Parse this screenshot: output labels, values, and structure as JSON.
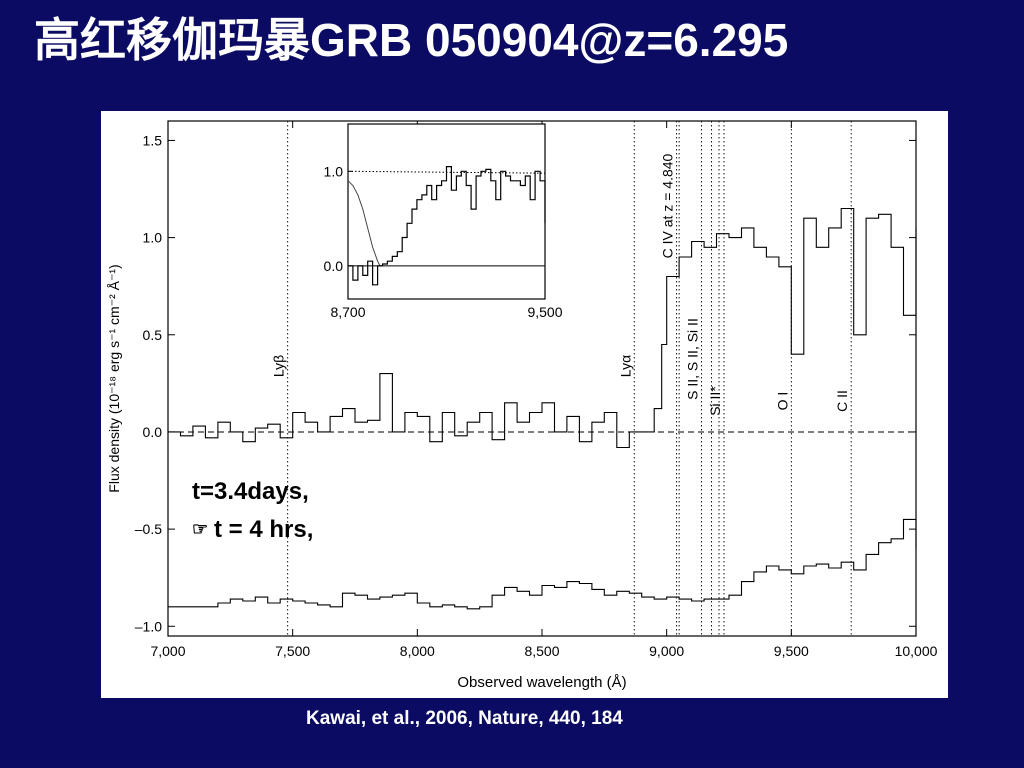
{
  "slide": {
    "title": "高红移伽玛暴GRB 050904@z=6.295",
    "citation": "Kawai, et al., 2006, Nature, 440, 184",
    "annotations": {
      "line1": "t=3.4days,",
      "line2": "t = 4 hrs,",
      "line2_icon": "pointing-hand-icon"
    }
  },
  "chart_data": [
    {
      "type": "line",
      "xlabel": "Observed wavelength (Å)",
      "ylabel": "Flux density (10⁻¹⁸ erg s⁻¹ cm⁻² Å⁻¹)",
      "xlim": [
        7000,
        10000
      ],
      "ylim": [
        -1.05,
        1.6
      ],
      "x_ticks": [
        7000,
        7500,
        8000,
        8500,
        9000,
        9500,
        10000
      ],
      "x_tick_labels": [
        "7,000",
        "7,500",
        "8,000",
        "8,500",
        "9,000",
        "9,500",
        "10,000"
      ],
      "y_ticks": [
        1.5,
        1.0,
        0.5,
        0.0,
        -0.5,
        -1.0
      ],
      "y_tick_labels": [
        "1.5",
        "1.0",
        "0.5",
        "0.0",
        "–0.5",
        "–1.0"
      ],
      "zero_line": 0,
      "line_markers": [
        {
          "x": 7480,
          "label": "Lyβ"
        },
        {
          "x": 8870,
          "label": "Lyα"
        },
        {
          "x": 9040,
          "label": "C IV at z = 4.840"
        },
        {
          "x": 9050,
          "label": ""
        },
        {
          "x": 9140,
          "label": "S II, S II, Si II"
        },
        {
          "x": 9180,
          "label": ""
        },
        {
          "x": 9210,
          "label": ""
        },
        {
          "x": 9230,
          "label": "Si II*"
        },
        {
          "x": 9500,
          "label": "O I"
        },
        {
          "x": 9740,
          "label": "C II"
        }
      ],
      "series": [
        {
          "x": [
            7000,
            7050,
            7100,
            7150,
            7200,
            7250,
            7300,
            7350,
            7400,
            7450,
            7500,
            7550,
            7600,
            7650,
            7700,
            7750,
            7800,
            7850,
            7900,
            7950,
            8000,
            8050,
            8100,
            8150,
            8200,
            8250,
            8300,
            8350,
            8400,
            8450,
            8500,
            8550,
            8600,
            8650,
            8700,
            8750,
            8800,
            8850,
            8900,
            8920,
            8950,
            8980,
            9000,
            9050,
            9100,
            9150,
            9200,
            9250,
            9300,
            9350,
            9400,
            9450,
            9500,
            9550,
            9600,
            9650,
            9700,
            9750,
            9800,
            9850,
            9900,
            9950,
            10000
          ],
          "y": [
            0.0,
            -0.02,
            0.03,
            -0.03,
            0.05,
            0.0,
            -0.05,
            0.02,
            0.04,
            -0.03,
            0.1,
            0.05,
            0.0,
            0.08,
            0.12,
            0.05,
            0.06,
            0.3,
            0.0,
            0.1,
            0.08,
            -0.05,
            0.1,
            -0.02,
            0.05,
            0.1,
            -0.04,
            0.15,
            0.05,
            0.1,
            0.15,
            0.0,
            0.08,
            -0.05,
            0.05,
            0.1,
            -0.08,
            0.0,
            0.0,
            0.0,
            0.12,
            0.45,
            0.8,
            0.9,
            0.98,
            0.95,
            1.02,
            1.0,
            1.05,
            0.95,
            0.9,
            0.85,
            0.4,
            1.1,
            0.95,
            1.05,
            1.15,
            0.5,
            1.1,
            1.12,
            0.95,
            0.6,
            1.05
          ]
        },
        {
          "x": [
            7000,
            7050,
            7100,
            7150,
            7200,
            7250,
            7300,
            7350,
            7400,
            7450,
            7500,
            7550,
            7600,
            7650,
            7700,
            7750,
            7800,
            7850,
            7900,
            7950,
            8000,
            8050,
            8100,
            8150,
            8200,
            8250,
            8300,
            8350,
            8400,
            8450,
            8500,
            8550,
            8600,
            8650,
            8700,
            8750,
            8800,
            8850,
            8900,
            8950,
            9000,
            9050,
            9100,
            9150,
            9200,
            9250,
            9300,
            9350,
            9400,
            9450,
            9500,
            9550,
            9600,
            9650,
            9700,
            9750,
            9800,
            9850,
            9900,
            9950,
            10000
          ],
          "y": [
            -0.9,
            -0.9,
            -0.9,
            -0.9,
            -0.88,
            -0.86,
            -0.87,
            -0.85,
            -0.88,
            -0.86,
            -0.87,
            -0.88,
            -0.89,
            -0.9,
            -0.83,
            -0.84,
            -0.86,
            -0.85,
            -0.84,
            -0.83,
            -0.88,
            -0.9,
            -0.89,
            -0.9,
            -0.91,
            -0.9,
            -0.84,
            -0.8,
            -0.82,
            -0.84,
            -0.79,
            -0.8,
            -0.77,
            -0.78,
            -0.81,
            -0.84,
            -0.82,
            -0.83,
            -0.85,
            -0.86,
            -0.85,
            -0.86,
            -0.87,
            -0.86,
            -0.86,
            -0.84,
            -0.77,
            -0.72,
            -0.69,
            -0.71,
            -0.73,
            -0.69,
            -0.68,
            -0.7,
            -0.67,
            -0.71,
            -0.63,
            -0.57,
            -0.55,
            -0.45,
            -0.6
          ]
        }
      ]
    },
    {
      "type": "line",
      "xlim": [
        8700,
        9500
      ],
      "ylim": [
        -0.35,
        1.5
      ],
      "x_ticks": [
        8700,
        9500
      ],
      "x_tick_labels": [
        "8,700",
        "9,500"
      ],
      "y_ticks": [
        1.0,
        0.0
      ],
      "y_tick_labels": [
        "1.0",
        "0.0"
      ],
      "zero_line": 0,
      "series": [
        {
          "x": [
            8700,
            8720,
            8740,
            8760,
            8780,
            8800,
            8820,
            8840,
            8860,
            8880,
            8900,
            8920,
            8940,
            8960,
            8980,
            9000,
            9020,
            9040,
            9060,
            9080,
            9100,
            9120,
            9140,
            9160,
            9180,
            9200,
            9220,
            9240,
            9260,
            9280,
            9300,
            9320,
            9340,
            9360,
            9380,
            9400,
            9420,
            9440,
            9460,
            9480,
            9500
          ],
          "y": [
            0.0,
            -0.15,
            0.0,
            -0.1,
            0.05,
            -0.2,
            0.0,
            0.02,
            0.05,
            0.1,
            0.15,
            0.3,
            0.45,
            0.6,
            0.7,
            0.75,
            0.85,
            0.7,
            0.85,
            0.9,
            1.05,
            0.8,
            0.95,
            1.0,
            0.85,
            0.6,
            0.95,
            1.0,
            1.02,
            0.9,
            0.7,
            1.0,
            0.95,
            0.9,
            0.9,
            0.85,
            0.95,
            0.7,
            1.0,
            0.9,
            0.45
          ]
        }
      ],
      "model_curve": {
        "x": [
          8700,
          8720,
          8740,
          8760,
          8780,
          8800,
          8820,
          8830,
          8840
        ],
        "y": [
          0.9,
          0.85,
          0.75,
          0.6,
          0.4,
          0.2,
          0.05,
          0.0,
          0.0
        ]
      },
      "continuum": {
        "x": [
          8700,
          9500
        ],
        "y": [
          1.0,
          0.98
        ]
      }
    }
  ]
}
